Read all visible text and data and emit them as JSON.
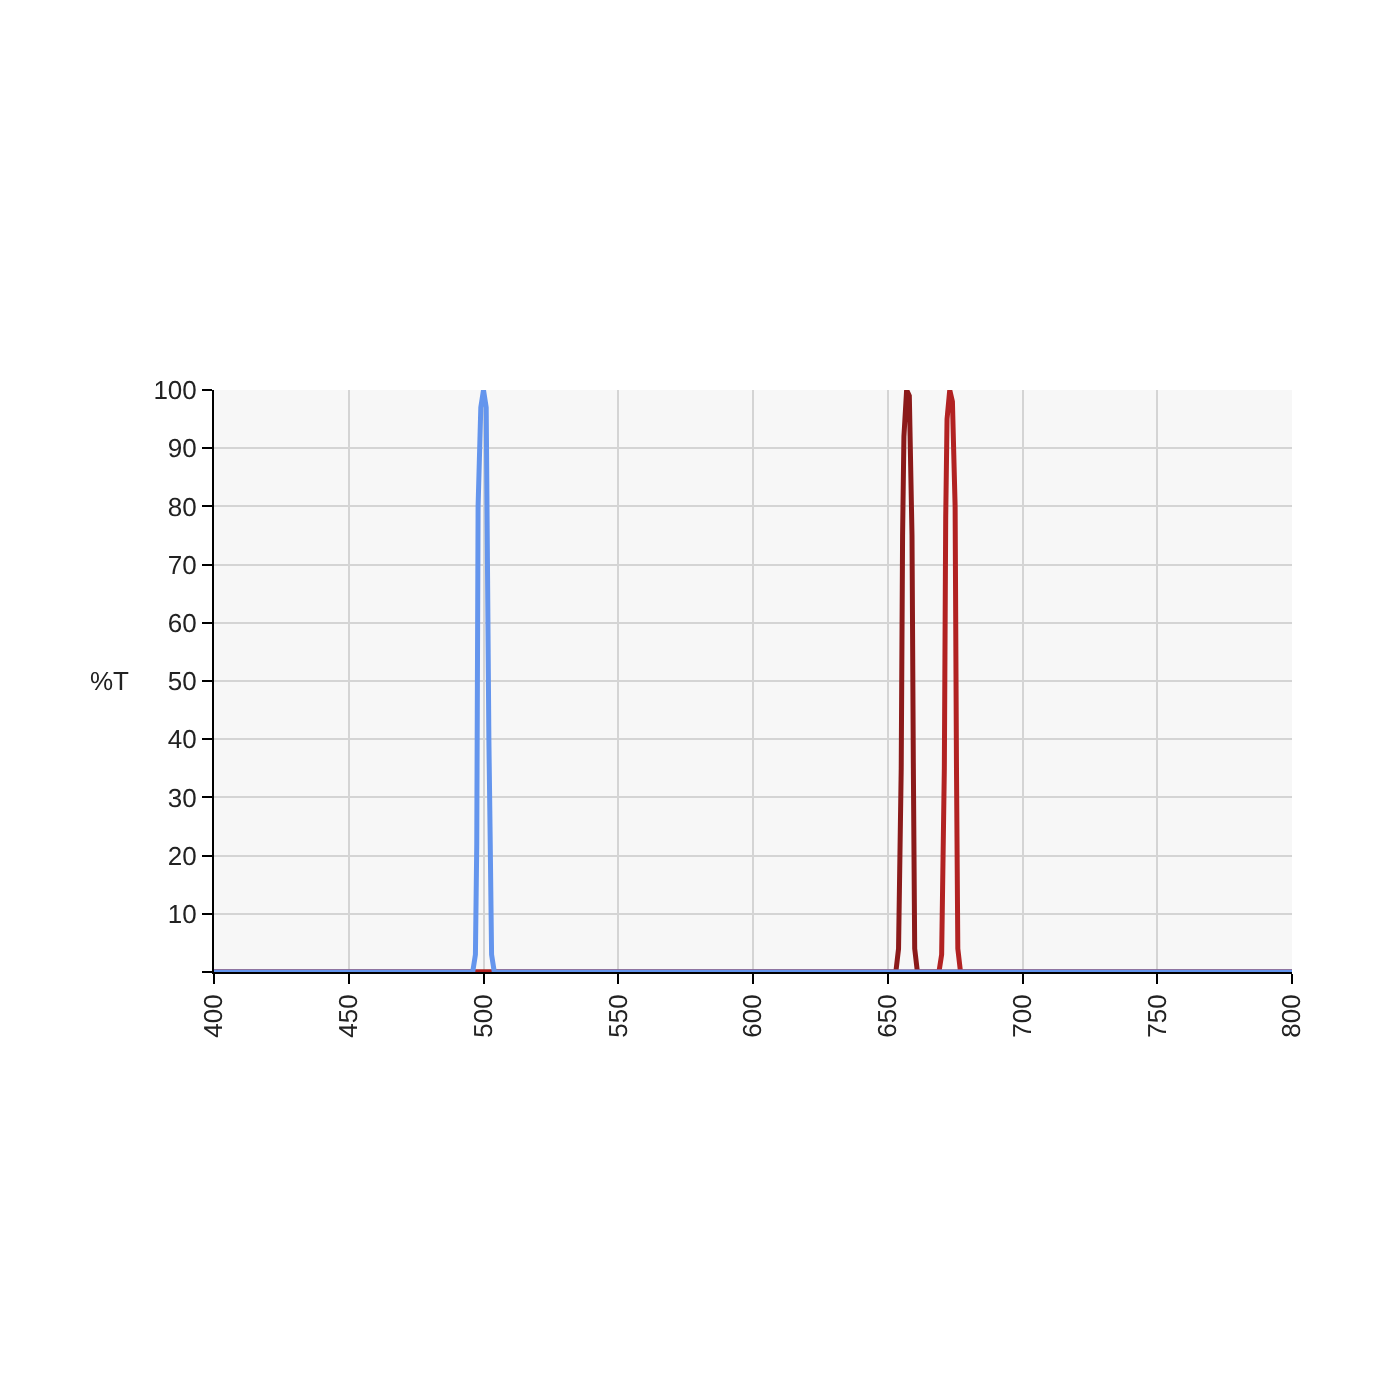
{
  "chart_data": {
    "type": "line",
    "ylabel": "%T",
    "series": [
      {
        "color": "#8b1a1a",
        "x": [
          400,
          653,
          654,
          655,
          655.5,
          656,
          657,
          658,
          659,
          659.5,
          660,
          661,
          800
        ],
        "values": [
          0,
          0,
          4,
          35,
          75,
          92,
          100,
          99,
          75,
          35,
          4,
          0,
          0
        ]
      },
      {
        "color": "#b22222",
        "x": [
          400,
          669,
          670,
          671,
          671.5,
          672,
          673,
          674,
          675,
          675.5,
          676,
          677,
          800
        ],
        "values": [
          0,
          0,
          3,
          35,
          78,
          95,
          100,
          98,
          80,
          35,
          4,
          0,
          0
        ]
      },
      {
        "color": "#6495ed",
        "x": [
          400,
          496,
          497,
          497.5,
          498,
          499,
          500,
          501,
          502,
          502.5,
          503,
          504,
          800
        ],
        "values": [
          0,
          0,
          3,
          22,
          80,
          97,
          100,
          97,
          40,
          22,
          3,
          0,
          0
        ]
      }
    ],
    "xlim": [
      400,
      800
    ],
    "xticks": [
      400,
      450,
      500,
      550,
      600,
      650,
      700,
      750,
      800
    ],
    "ylim": [
      0,
      100
    ],
    "yticks": [
      {
        "value": 0,
        "label": null
      },
      10,
      20,
      30,
      40,
      50,
      60,
      70,
      80,
      90,
      100
    ],
    "grid": true,
    "marker": "none",
    "line_style": "solid"
  }
}
